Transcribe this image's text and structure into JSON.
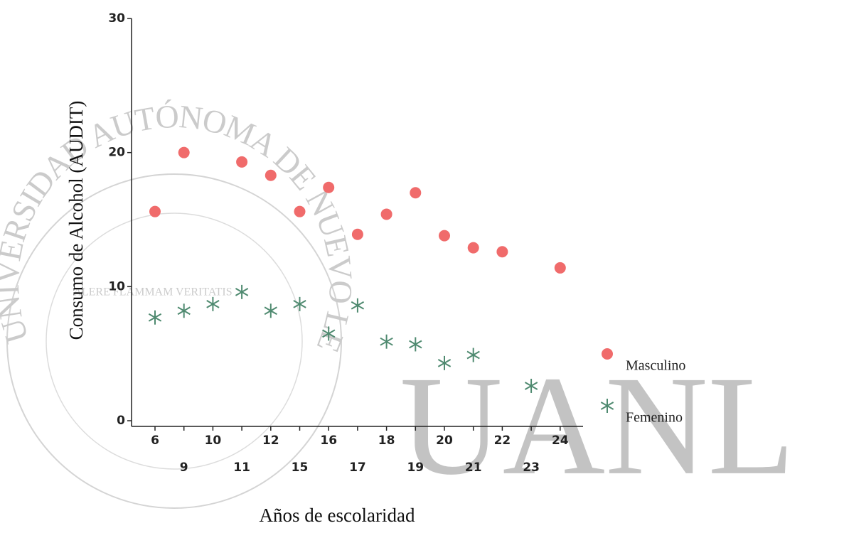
{
  "chart_data": {
    "type": "scatter",
    "x_label": "Años de escolaridad",
    "y_label": "Consumo de Alcohol (AUDIT)",
    "categories": [
      "6",
      "9",
      "10",
      "11",
      "12",
      "15",
      "16",
      "17",
      "18",
      "19",
      "20",
      "21",
      "22",
      "23",
      "24"
    ],
    "series": [
      {
        "name": "Masculino",
        "color": "#f06b6b",
        "marker": "circle",
        "values": [
          15.6,
          20,
          null,
          19.3,
          18.3,
          15.6,
          17.4,
          13.9,
          15.4,
          17.0,
          13.8,
          12.9,
          12.6,
          null,
          11.4
        ]
      },
      {
        "name": "Femenino",
        "color": "#4f8a70",
        "marker": "asterisk",
        "values": [
          7.7,
          8.2,
          8.7,
          9.6,
          8.2,
          8.7,
          6.5,
          8.6,
          5.9,
          5.7,
          4.3,
          4.9,
          null,
          2.6,
          null
        ]
      }
    ],
    "ylim": [
      0,
      30
    ],
    "yticks": [
      0,
      10,
      20,
      30
    ],
    "grid": false,
    "legend": "right"
  },
  "watermark": {
    "text": "UANL",
    "seal": "UNIVERSIDAD AUTÓNOMA DE NUEVO LEÓN",
    "motto": "ALERE FLAMMAM VERITATIS"
  }
}
